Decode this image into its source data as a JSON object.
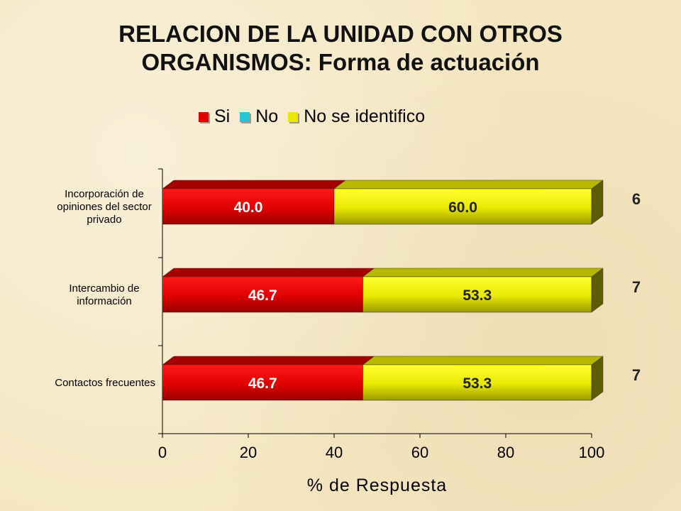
{
  "title": {
    "line1": "RELACION DE LA UNIDAD CON OTROS",
    "line2": "ORGANISMOS: Forma de actuación"
  },
  "legend": [
    {
      "label": "Si",
      "color": "#e00000"
    },
    {
      "label": "No",
      "color": "#22c6d6"
    },
    {
      "label": "No se identifico",
      "color": "#e8e800"
    }
  ],
  "chart_data": {
    "type": "bar",
    "orientation": "horizontal",
    "stacked": true,
    "categories": [
      "Incorporación de opiniones del sector privado",
      "Intercambio de información",
      "Contactos frecuentes"
    ],
    "category_lines": [
      [
        "Incorporación de",
        "opiniones del sector",
        "privado"
      ],
      [
        "Intercambio  de",
        "información"
      ],
      [
        "Contactos frecuentes"
      ]
    ],
    "series": [
      {
        "name": "Si",
        "values": [
          40.0,
          46.7,
          46.7
        ],
        "labels": [
          "40.0",
          "46.7",
          "46.7"
        ],
        "color": "#e00000"
      },
      {
        "name": "No",
        "values": [
          0,
          0,
          0
        ],
        "labels": [
          "",
          "",
          ""
        ],
        "color": "#22c6d6"
      },
      {
        "name": "No se identifico",
        "values": [
          60.0,
          53.3,
          53.3
        ],
        "labels": [
          "60.0",
          "53.3",
          "53.3"
        ],
        "color": "#e8e800"
      }
    ],
    "n": [
      "6",
      "7",
      "7"
    ],
    "xlabel": "% de Respuesta",
    "xlim": [
      0,
      100
    ],
    "xticks": [
      "0",
      "20",
      "40",
      "60",
      "80",
      "100"
    ]
  }
}
